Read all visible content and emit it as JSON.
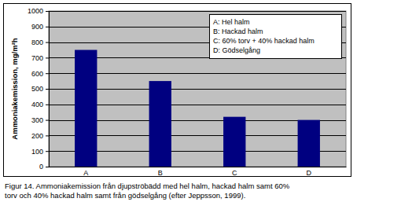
{
  "chart_data": {
    "type": "bar",
    "ylabel": "Ammoniakemission, mg/m²h",
    "categories": [
      "A",
      "B",
      "C",
      "D"
    ],
    "values": [
      750,
      550,
      320,
      300
    ],
    "color": "#000080",
    "ylim": [
      0,
      1000
    ],
    "yticks": [
      0,
      100,
      200,
      300,
      400,
      500,
      600,
      700,
      800,
      900,
      1000
    ],
    "grid": true,
    "annotations": [
      "A: Hel halm",
      "B: Hackad halm",
      "C: 60% torv + 40% hackad halm",
      "D: Gödselgång"
    ],
    "caption": [
      "Figur 14. Ammoniakemission från djupströbädd med hel halm, hackad halm samt 60%",
      "torv och 40% hackad halm samt från gödselgång (efter Jeppsson, 1999)."
    ]
  }
}
